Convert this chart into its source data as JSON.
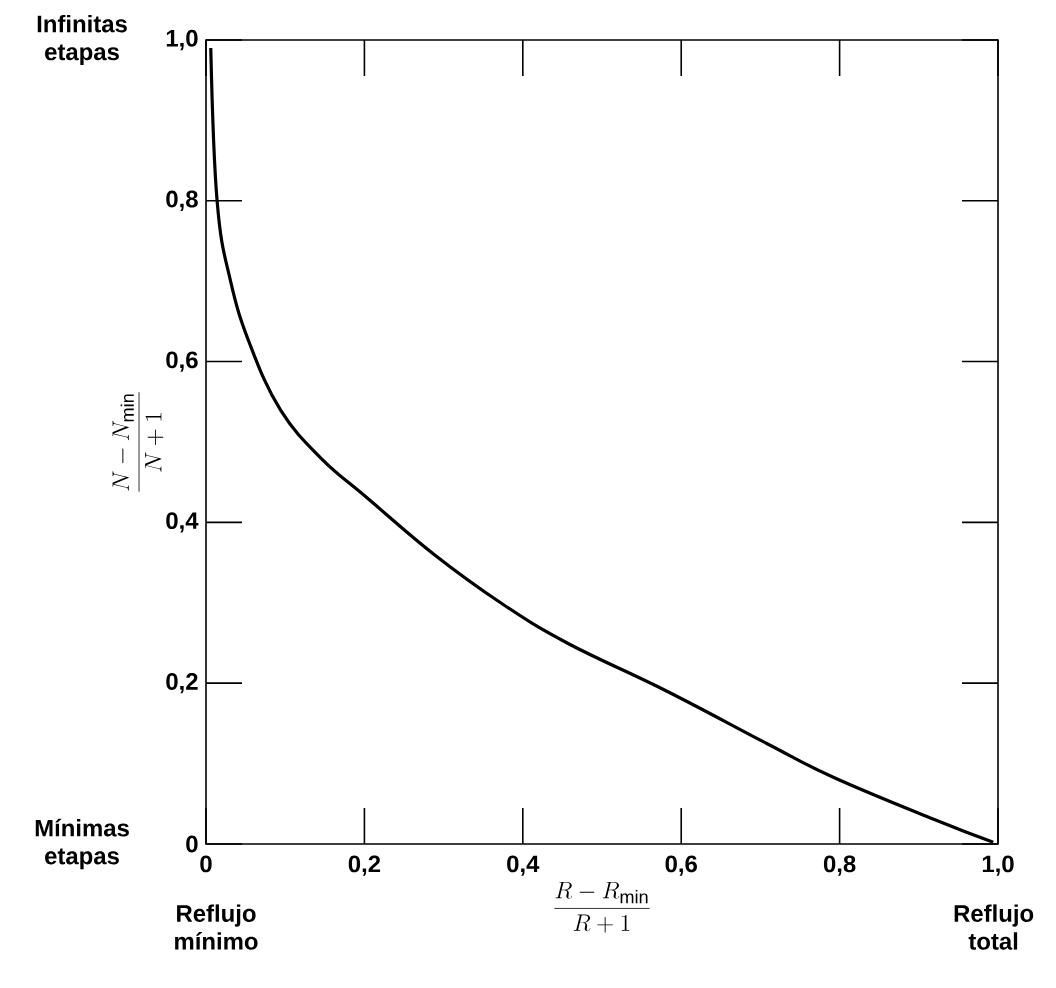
{
  "chart_data": {
    "type": "line",
    "xlabel": "\\frac{R - R_{\\min}}{R + 1}",
    "ylabel": "\\frac{N - N_{\\min}}{N + 1}",
    "annotations": [
      "Infinitas etapas",
      "Mínimas etapas",
      "Reflujo mínimo",
      "Reflujo total"
    ],
    "x": [
      0.006,
      0.014,
      0.031,
      0.056,
      0.094,
      0.145,
      0.204,
      0.288,
      0.372,
      0.456,
      0.582,
      0.708,
      0.792,
      0.918,
      0.994
    ],
    "values": [
      0.99,
      0.8,
      0.7,
      0.62,
      0.54,
      0.48,
      0.43,
      0.36,
      0.3,
      0.25,
      0.19,
      0.125,
      0.083,
      0.031,
      0.002
    ],
    "color": "#000000",
    "xlim": [
      0,
      1
    ],
    "ylim": [
      0,
      1
    ],
    "xticks": [
      0,
      {
        "value": 0.2,
        "label": "0,2"
      },
      {
        "value": 0.4,
        "label": "0,4"
      },
      {
        "value": 0.6,
        "label": "0,6"
      },
      {
        "value": 0.8,
        "label": "0,8"
      },
      {
        "value": 1,
        "label": "1,0"
      }
    ],
    "yticks": [
      0,
      {
        "value": 0.2,
        "label": "0,2"
      },
      {
        "value": 0.4,
        "label": "0,4"
      },
      {
        "value": 0.6,
        "label": "0,6"
      },
      {
        "value": 0.8,
        "label": "0,8"
      },
      {
        "value": 1,
        "label": "1,0"
      }
    ]
  }
}
